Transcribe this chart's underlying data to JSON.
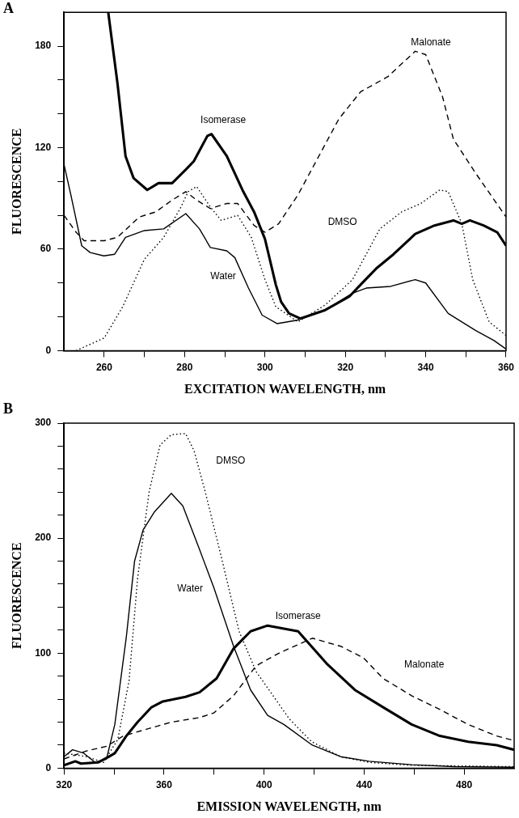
{
  "chart_data": [
    {
      "type": "line",
      "annotations": [
        "A"
      ],
      "xlabel": "EXCITATION WAVELENGTH, nm",
      "ylabel": "FLUORESCENCE",
      "xlim": [
        250,
        360
      ],
      "ylim": [
        0,
        200
      ],
      "xticks": [
        260,
        {
          "value": 270,
          "label": null
        },
        280,
        {
          "value": 290,
          "label": null
        },
        300,
        {
          "value": 310,
          "label": null
        },
        320,
        {
          "value": 330,
          "label": null
        },
        340,
        {
          "value": 350,
          "label": null
        },
        360
      ],
      "yticks": [
        0,
        {
          "value": 20,
          "label": null
        },
        {
          "value": 40,
          "label": null
        },
        60,
        {
          "value": 80,
          "label": null
        },
        {
          "value": 100,
          "label": null
        },
        120,
        {
          "value": 140,
          "label": null
        },
        {
          "value": 160,
          "label": null
        },
        180
      ],
      "grid": false,
      "legend": false,
      "marker": "none",
      "series": [
        {
          "name": "Isomerase",
          "color": "#000000",
          "line_style": "solid",
          "x": [
            261,
            263.3,
            265.3,
            267.3,
            270.7,
            273.5,
            276.9,
            280.3,
            282.3,
            285.7,
            286.7,
            290.5,
            294.6,
            297.3,
            300,
            302.7,
            304,
            306,
            308.8,
            315,
            321,
            323.8,
            327.9,
            332,
            337.4,
            342.2,
            346.9,
            349,
            351,
            354.4,
            357.8,
            360
          ],
          "values": [
            200,
            158,
            115,
            102,
            95,
            99,
            99,
            107,
            112,
            127,
            128,
            115,
            94,
            82,
            66,
            39,
            29,
            22,
            19,
            24,
            32,
            39,
            49,
            57,
            69,
            74,
            77,
            75,
            77,
            74,
            70,
            62
          ]
        },
        {
          "name": "Water",
          "color": "#000000",
          "line_style": "solid",
          "x": [
            250,
            251.7,
            254.4,
            256.5,
            259.9,
            262.6,
            265.3,
            270,
            274.8,
            280.3,
            283.7,
            286.4,
            290.5,
            292.5,
            295.9,
            299.3,
            303,
            308,
            315,
            321.8,
            325.2,
            331.3,
            337.4,
            340,
            345.6,
            352.4,
            357,
            360
          ],
          "values": [
            110,
            92,
            62,
            58,
            56,
            57,
            67,
            71,
            72,
            81,
            72,
            61,
            59,
            55,
            37,
            21,
            16,
            18,
            24,
            34,
            37,
            38,
            42,
            40,
            22,
            12,
            6,
            1
          ]
        },
        {
          "name": "DMSO",
          "color": "#000000",
          "line_style": "dotted",
          "x": [
            253,
            260,
            264.6,
            270,
            274.8,
            278.9,
            280.9,
            283,
            286.4,
            289.1,
            293.2,
            296.6,
            300,
            302.7,
            308.2,
            315,
            321.8,
            328.6,
            334,
            338.8,
            343.5,
            345.6,
            349,
            351.7,
            355.8,
            360
          ],
          "values": [
            0,
            7.5,
            26,
            54,
            67,
            84,
            94,
            97,
            85,
            77,
            80,
            67,
            42,
            26,
            17,
            27,
            42,
            72,
            82,
            87,
            95,
            94,
            75,
            42,
            17,
            9
          ]
        },
        {
          "name": "Malonate",
          "color": "#000000",
          "line_style": "dashed",
          "x": [
            250,
            253,
            255,
            260,
            263.3,
            268.7,
            272.8,
            276.9,
            280.3,
            283,
            286.4,
            290.5,
            293.2,
            297.3,
            300,
            303.4,
            308.2,
            318.4,
            323.8,
            330.6,
            337.4,
            340,
            344.2,
            346.9,
            352.4,
            360
          ],
          "values": [
            80,
            70,
            65,
            65,
            67,
            79,
            82,
            89,
            94,
            89,
            84,
            87,
            87,
            74,
            70,
            75,
            92,
            137,
            153,
            162,
            177,
            175,
            150,
            125,
            105,
            79
          ]
        }
      ]
    },
    {
      "type": "line",
      "annotations": [
        "B"
      ],
      "xlabel": "EMISSION WAVELENGTH, nm",
      "ylabel": "FLUORESCENCE",
      "xlim": [
        320,
        500
      ],
      "ylim": [
        0,
        300
      ],
      "xticks": [
        320,
        {
          "value": 340,
          "label": null
        },
        360,
        {
          "value": 380,
          "label": null
        },
        400,
        {
          "value": 420,
          "label": null
        },
        440,
        {
          "value": 460,
          "label": null
        },
        480
      ],
      "yticks": [
        0,
        {
          "value": 20,
          "label": null
        },
        {
          "value": 40,
          "label": null
        },
        {
          "value": 60,
          "label": null
        },
        {
          "value": 80,
          "label": null
        },
        100,
        {
          "value": 120,
          "label": null
        },
        {
          "value": 140,
          "label": null
        },
        {
          "value": 160,
          "label": null
        },
        {
          "value": 180,
          "label": null
        },
        200,
        {
          "value": 220,
          "label": null
        },
        {
          "value": 240,
          "label": null
        },
        {
          "value": 260,
          "label": null
        },
        {
          "value": 280,
          "label": null
        },
        300
      ],
      "grid": false,
      "legend": false,
      "marker": "none",
      "series": [
        {
          "name": "Isomerase",
          "color": "#000000",
          "line_style": "solid",
          "x": [
            320,
            324.5,
            326.8,
            333.6,
            338,
            340.3,
            344.9,
            349.4,
            355,
            359.5,
            368.6,
            374.2,
            381,
            387.8,
            394.6,
            401.4,
            413.6,
            425,
            436.3,
            447.6,
            459,
            470.3,
            481.6,
            493,
            500
          ],
          "values": [
            2.5,
            6,
            4,
            5,
            10,
            13,
            28,
            40,
            53,
            58,
            62,
            66,
            78,
            104,
            119,
            124,
            119,
            91,
            68,
            53,
            38,
            28,
            23,
            20,
            16
          ]
        },
        {
          "name": "Water",
          "color": "#000000",
          "line_style": "solid",
          "x": [
            320,
            323.4,
            327.9,
            332.4,
            337,
            340.3,
            344.9,
            348.2,
            351.6,
            356.2,
            362.9,
            367.5,
            374.2,
            379.9,
            387.8,
            394.6,
            401.4,
            407.9,
            419.3,
            430.6,
            442,
            459,
            476,
            500
          ],
          "values": [
            10,
            16,
            13,
            5,
            8,
            38,
            114,
            180,
            207,
            223,
            239,
            228,
            190,
            157,
            106,
            68,
            46,
            38,
            20,
            10,
            6,
            3,
            1.3,
            0.8
          ]
        },
        {
          "name": "DMSO",
          "color": "#000000",
          "line_style": "dotted",
          "x": [
            320,
            329,
            335.8,
            341.5,
            346,
            349.4,
            354,
            358.4,
            362.9,
            368.6,
            372,
            376.5,
            383.3,
            390,
            396.8,
            403.6,
            410,
            419,
            430.6,
            442,
            459,
            500
          ],
          "values": [
            13,
            10,
            5,
            25,
            76,
            165,
            240,
            281,
            290,
            291,
            276,
            240,
            180,
            119,
            84,
            63,
            43,
            23,
            10,
            5,
            2.5,
            1.3
          ]
        },
        {
          "name": "Malonate",
          "color": "#000000",
          "line_style": "dashed",
          "x": [
            320,
            329,
            337,
            343.7,
            351.6,
            362.9,
            374.2,
            379.9,
            387.8,
            396.8,
            405.9,
            419.3,
            430.6,
            439.7,
            447.6,
            459,
            470.3,
            481.6,
            493,
            500
          ],
          "values": [
            8,
            15,
            19,
            28,
            33,
            40,
            44,
            48,
            63,
            89,
            100,
            113,
            106,
            96,
            78,
            63,
            51,
            38,
            28,
            24
          ]
        }
      ]
    }
  ]
}
